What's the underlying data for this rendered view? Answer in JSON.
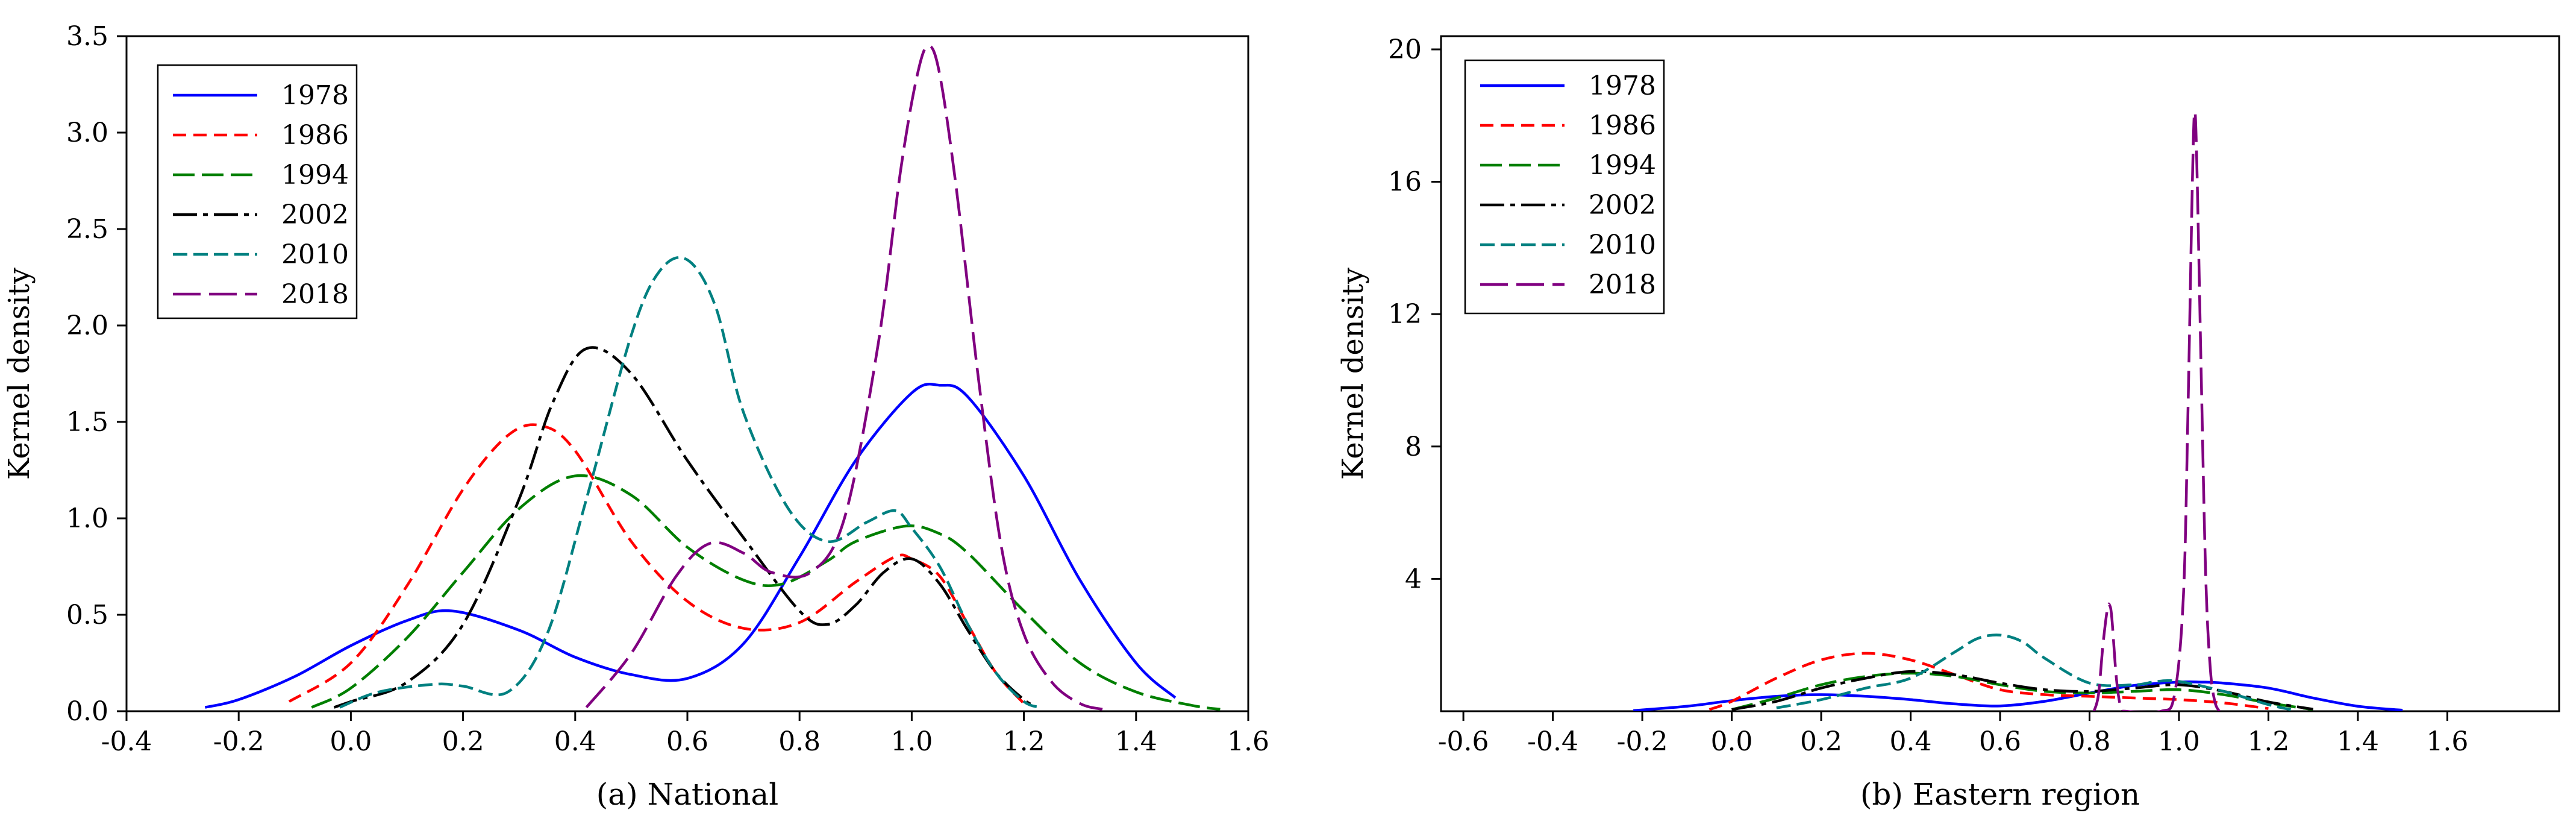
{
  "colors": {
    "1978": "#0000ff",
    "1986": "#ff0000",
    "1994": "#007f00",
    "2002": "#000000",
    "2010": "#008080",
    "2018": "#800080"
  },
  "chart_data": [
    {
      "type": "line",
      "caption": "(a) National",
      "ylabel": "Kernel density",
      "xlabel": "",
      "xlim": [
        -0.4,
        1.6
      ],
      "ylim": [
        0,
        3.5
      ],
      "xticks": [
        -0.4,
        -0.2,
        0.0,
        0.2,
        0.4,
        0.6,
        0.8,
        1.0,
        1.2,
        1.4,
        1.6
      ],
      "xtick_labels": [
        "-0.4",
        "-0.2",
        "0.0",
        "0.2",
        "0.4",
        "0.6",
        "0.8",
        "1.0",
        "1.2",
        "1.4",
        "1.6"
      ],
      "yticks": [
        0,
        0.5,
        1.0,
        1.5,
        2.0,
        2.5,
        3.0,
        3.5
      ],
      "ytick_labels": [
        "0.0",
        "0.5",
        "1.0",
        "1.5",
        "2.0",
        "2.5",
        "3.0",
        "3.5"
      ],
      "legend_position": "top-left",
      "series": [
        {
          "name": "1978",
          "x": [
            -0.26,
            -0.2,
            -0.1,
            0.0,
            0.1,
            0.18,
            0.3,
            0.4,
            0.5,
            0.6,
            0.7,
            0.8,
            0.9,
            1.0,
            1.05,
            1.1,
            1.2,
            1.3,
            1.4,
            1.47
          ],
          "y": [
            0.02,
            0.06,
            0.18,
            0.34,
            0.47,
            0.52,
            0.42,
            0.28,
            0.19,
            0.17,
            0.35,
            0.8,
            1.3,
            1.65,
            1.69,
            1.63,
            1.22,
            0.68,
            0.25,
            0.07
          ]
        },
        {
          "name": "1986",
          "x": [
            -0.11,
            0.0,
            0.1,
            0.2,
            0.28,
            0.34,
            0.4,
            0.5,
            0.6,
            0.7,
            0.8,
            0.9,
            0.97,
            1.0,
            1.05,
            1.1,
            1.15,
            1.2
          ],
          "y": [
            0.05,
            0.25,
            0.65,
            1.15,
            1.43,
            1.48,
            1.35,
            0.88,
            0.57,
            0.43,
            0.46,
            0.67,
            0.8,
            0.79,
            0.7,
            0.45,
            0.2,
            0.04
          ]
        },
        {
          "name": "1994",
          "x": [
            -0.07,
            0.0,
            0.1,
            0.2,
            0.3,
            0.4,
            0.5,
            0.6,
            0.7,
            0.77,
            0.85,
            0.9,
            0.99,
            1.05,
            1.1,
            1.2,
            1.3,
            1.4,
            1.5,
            1.55
          ],
          "y": [
            0.02,
            0.12,
            0.38,
            0.72,
            1.05,
            1.22,
            1.12,
            0.85,
            0.68,
            0.66,
            0.78,
            0.88,
            0.96,
            0.92,
            0.82,
            0.52,
            0.25,
            0.1,
            0.03,
            0.01
          ]
        },
        {
          "name": "2002",
          "x": [
            -0.03,
            0.0,
            0.1,
            0.2,
            0.3,
            0.36,
            0.42,
            0.5,
            0.6,
            0.7,
            0.8,
            0.85,
            0.9,
            0.95,
            1.0,
            1.05,
            1.1,
            1.15,
            1.2,
            1.22
          ],
          "y": [
            0.02,
            0.05,
            0.15,
            0.45,
            1.1,
            1.6,
            1.88,
            1.75,
            1.3,
            0.9,
            0.52,
            0.45,
            0.55,
            0.72,
            0.79,
            0.66,
            0.42,
            0.2,
            0.06,
            0.03
          ]
        },
        {
          "name": "2010",
          "x": [
            -0.02,
            0.05,
            0.15,
            0.2,
            0.28,
            0.35,
            0.42,
            0.5,
            0.55,
            0.6,
            0.65,
            0.7,
            0.78,
            0.85,
            0.92,
            0.97,
            1.0,
            1.05,
            1.1,
            1.15,
            1.2,
            1.23
          ],
          "y": [
            0.02,
            0.1,
            0.14,
            0.13,
            0.1,
            0.4,
            1.1,
            1.95,
            2.28,
            2.34,
            2.1,
            1.55,
            1.05,
            0.88,
            0.98,
            1.04,
            0.95,
            0.75,
            0.45,
            0.2,
            0.05,
            0.02
          ]
        },
        {
          "name": "2018",
          "x": [
            0.42,
            0.5,
            0.58,
            0.64,
            0.7,
            0.75,
            0.82,
            0.88,
            0.94,
            0.98,
            1.01,
            1.03,
            1.05,
            1.08,
            1.12,
            1.16,
            1.2,
            1.25,
            1.3,
            1.34
          ],
          "y": [
            0.02,
            0.3,
            0.7,
            0.87,
            0.82,
            0.72,
            0.72,
            1.0,
            1.9,
            2.8,
            3.3,
            3.45,
            3.3,
            2.7,
            1.7,
            0.85,
            0.4,
            0.15,
            0.04,
            0.01
          ]
        }
      ]
    },
    {
      "type": "line",
      "caption": "(b) Eastern region",
      "ylabel": "Kernel density",
      "xlabel": "",
      "xlim": [
        -0.65,
        1.85
      ],
      "ylim": [
        0,
        20.4
      ],
      "xticks": [
        -0.6,
        -0.4,
        -0.2,
        0.0,
        0.2,
        0.4,
        0.6,
        0.8,
        1.0,
        1.2,
        1.4,
        1.6
      ],
      "xtick_labels": [
        "-0.6",
        "-0.4",
        "-0.2",
        "0.0",
        "0.2",
        "0.4",
        "0.6",
        "0.8",
        "1.0",
        "1.2",
        "1.4",
        "1.6"
      ],
      "yticks": [
        4,
        8,
        12,
        16,
        20
      ],
      "ytick_labels": [
        "4",
        "8",
        "12",
        "16",
        "20"
      ],
      "legend_position": "top-left",
      "series": [
        {
          "name": "1978",
          "x": [
            -0.22,
            -0.1,
            0.0,
            0.1,
            0.2,
            0.3,
            0.4,
            0.5,
            0.6,
            0.7,
            0.8,
            0.9,
            1.0,
            1.05,
            1.1,
            1.2,
            1.3,
            1.4,
            1.5
          ],
          "y": [
            0.02,
            0.15,
            0.32,
            0.45,
            0.5,
            0.45,
            0.35,
            0.22,
            0.16,
            0.3,
            0.55,
            0.78,
            0.88,
            0.88,
            0.85,
            0.7,
            0.4,
            0.15,
            0.03
          ]
        },
        {
          "name": "1986",
          "x": [
            -0.05,
            0.0,
            0.1,
            0.2,
            0.3,
            0.4,
            0.5,
            0.6,
            0.7,
            0.8,
            0.9,
            1.0,
            1.1,
            1.2
          ],
          "y": [
            0.05,
            0.3,
            1.0,
            1.55,
            1.75,
            1.55,
            1.1,
            0.65,
            0.5,
            0.45,
            0.4,
            0.35,
            0.25,
            0.08
          ]
        },
        {
          "name": "1994",
          "x": [
            0.0,
            0.1,
            0.2,
            0.3,
            0.4,
            0.5,
            0.6,
            0.7,
            0.8,
            0.9,
            1.0,
            1.1,
            1.2,
            1.3
          ],
          "y": [
            0.05,
            0.4,
            0.8,
            1.05,
            1.15,
            1.05,
            0.8,
            0.6,
            0.55,
            0.6,
            0.65,
            0.5,
            0.25,
            0.05
          ]
        },
        {
          "name": "2002",
          "x": [
            0.0,
            0.1,
            0.2,
            0.3,
            0.4,
            0.5,
            0.6,
            0.7,
            0.8,
            0.9,
            1.0,
            1.1,
            1.2,
            1.3
          ],
          "y": [
            0.05,
            0.3,
            0.7,
            1.0,
            1.2,
            1.1,
            0.85,
            0.65,
            0.6,
            0.7,
            0.8,
            0.6,
            0.28,
            0.06
          ]
        },
        {
          "name": "2010",
          "x": [
            0.1,
            0.2,
            0.3,
            0.4,
            0.5,
            0.55,
            0.6,
            0.65,
            0.7,
            0.8,
            0.9,
            0.95,
            1.0,
            1.1,
            1.2,
            1.25
          ],
          "y": [
            0.1,
            0.35,
            0.7,
            1.0,
            1.8,
            2.2,
            2.3,
            2.1,
            1.6,
            0.85,
            0.8,
            0.9,
            0.9,
            0.6,
            0.2,
            0.05
          ]
        },
        {
          "name": "2018",
          "x": [
            0.81,
            0.82,
            0.83,
            0.84,
            0.845,
            0.85,
            0.86,
            0.87,
            0.88,
            0.96,
            0.99,
            1.01,
            1.02,
            1.03,
            1.035,
            1.04,
            1.05,
            1.06,
            1.07,
            1.08,
            1.09
          ],
          "y": [
            0.0,
            0.5,
            2.0,
            3.1,
            3.2,
            2.8,
            1.0,
            0.1,
            0.0,
            0.0,
            0.5,
            3.5,
            9.0,
            16.0,
            18.1,
            16.5,
            10.0,
            4.0,
            1.3,
            0.3,
            0.0
          ]
        }
      ]
    }
  ]
}
